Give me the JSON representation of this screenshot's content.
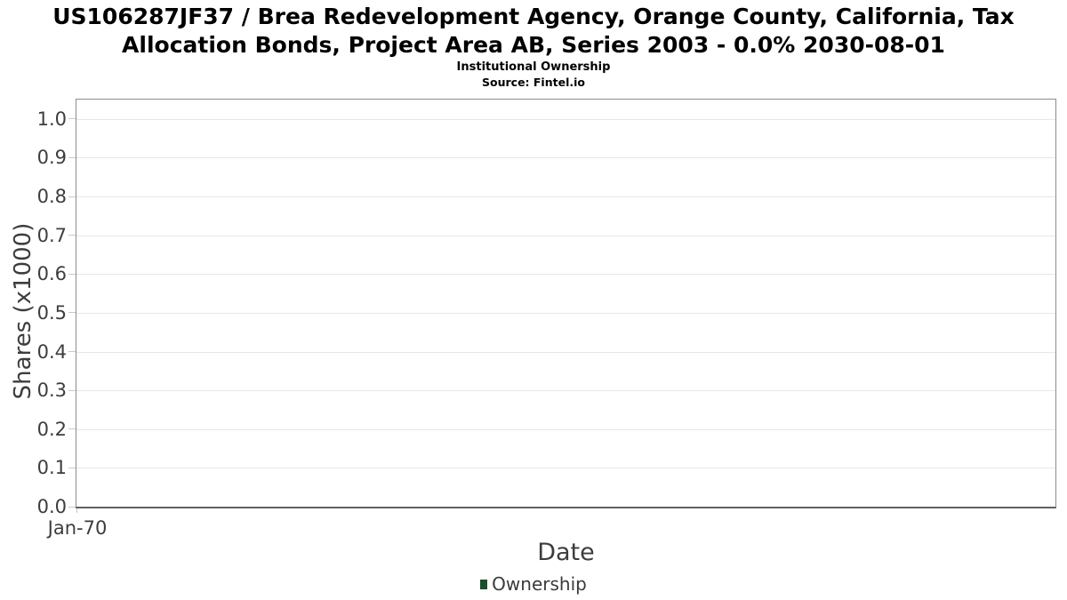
{
  "chart_data": {
    "type": "line",
    "title": "US106287JF37 / Brea Redevelopment Agency, Orange County, California, Tax Allocation Bonds, Project Area AB, Series 2003 - 0.0% 2030-08-01",
    "subtitle": "Institutional Ownership",
    "source": "Source: Fintel.io",
    "xlabel": "Date",
    "ylabel": "Shares (x1000)",
    "x_tick_labels": [
      "Jan-70"
    ],
    "y_tick_values": [
      0.0,
      0.1,
      0.2,
      0.3,
      0.4,
      0.5,
      0.6,
      0.7,
      0.8,
      0.9,
      1.0
    ],
    "y_tick_labels": [
      "0.0",
      "0.1",
      "0.2",
      "0.3",
      "0.4",
      "0.5",
      "0.6",
      "0.7",
      "0.8",
      "0.9",
      "1.0"
    ],
    "ylim": [
      0,
      1.05
    ],
    "grid": "horizontal-major",
    "legend_position": "bottom-center",
    "series": [
      {
        "name": "Ownership",
        "color": "#1d4f2c",
        "points": []
      }
    ],
    "colors": {
      "title": "#000000",
      "grid": "#e7e7e7",
      "axis_border": "#8c8c8c",
      "axis_bottom": "#606060",
      "tick": "#c9c9c9",
      "tick_label": "#3d3d3d",
      "axis_label": "#3d3d3d",
      "legend_text": "#3a3a3a",
      "background": "#ffffff"
    }
  }
}
